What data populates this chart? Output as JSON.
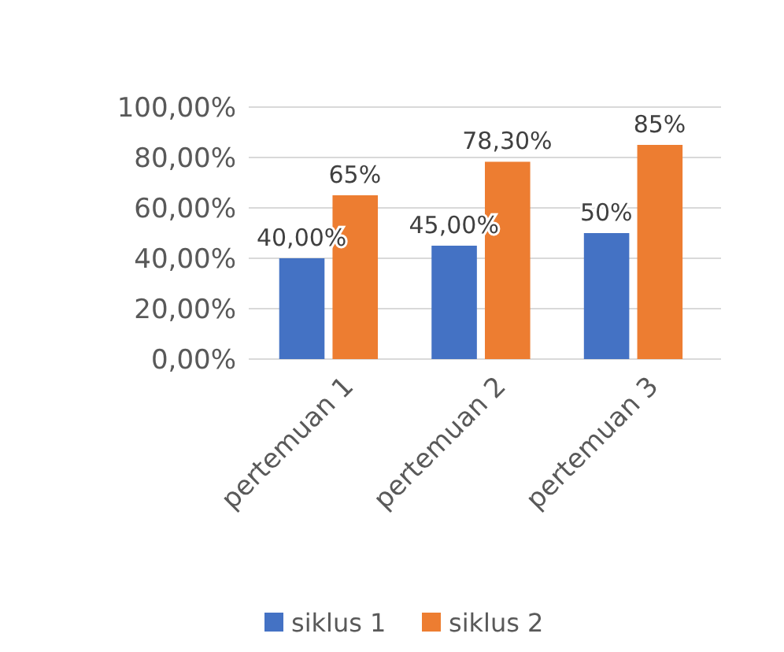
{
  "chart_data": {
    "type": "bar",
    "categories": [
      "pertemuan 1",
      "pertemuan 2",
      "pertemuan 3"
    ],
    "series": [
      {
        "name": "siklus 1",
        "color": "#4472c4",
        "values": [
          40,
          45,
          50
        ],
        "value_labels": [
          "40,00%",
          "45,00%",
          "50%"
        ]
      },
      {
        "name": "siklus 2",
        "color": "#ed7d31",
        "values": [
          65,
          78.3,
          85
        ],
        "value_labels": [
          "65%",
          "78,30%",
          "85%"
        ]
      }
    ],
    "ylim": [
      0,
      100
    ],
    "yticks": [
      {
        "value": 0,
        "label": "0,00%"
      },
      {
        "value": 20,
        "label": "20,00%"
      },
      {
        "value": 40,
        "label": "40,00%"
      },
      {
        "value": 60,
        "label": "60,00%"
      },
      {
        "value": 80,
        "label": "80,00%"
      },
      {
        "value": 100,
        "label": "100,00%"
      }
    ],
    "grid": "y",
    "legend": "bottom"
  }
}
